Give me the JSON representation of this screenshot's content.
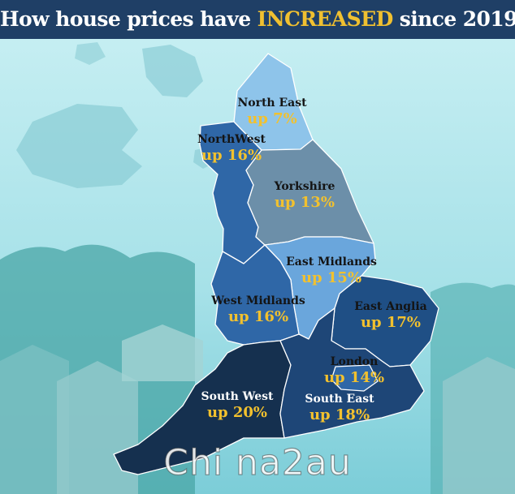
{
  "title": {
    "part1": "How house prices have ",
    "highlight": "INCREASED",
    "part2": " since 2019"
  },
  "colors": {
    "header_bg": "#1f3f66",
    "highlight": "#f0c030",
    "value_text": "#f2c12e",
    "background_sky": "#a9e4ea"
  },
  "regions": [
    {
      "id": "north-east",
      "name": "North East",
      "change": "up 7%",
      "fill": "#8ec4ea"
    },
    {
      "id": "north-west",
      "name": "NorthWest",
      "change": "up 16%",
      "fill": "#2f67a7"
    },
    {
      "id": "yorkshire",
      "name": "Yorkshire",
      "change": "up 13%",
      "fill": "#6c8fa9"
    },
    {
      "id": "east-midlands",
      "name": "East Midlands",
      "change": "up 15%",
      "fill": "#6aa6dc"
    },
    {
      "id": "west-midlands",
      "name": "West Midlands",
      "change": "up 16%",
      "fill": "#2f67a7"
    },
    {
      "id": "east-anglia",
      "name": "East Anglia",
      "change": "up 17%",
      "fill": "#1f4f85"
    },
    {
      "id": "london",
      "name": "London",
      "change": "up 14%",
      "fill": "#2f67a7"
    },
    {
      "id": "south-west",
      "name": "South West",
      "change": "up 20%",
      "fill": "#15304f"
    },
    {
      "id": "south-east",
      "name": "South East",
      "change": "up 18%",
      "fill": "#1e4677"
    }
  ],
  "watermark": "Chi na2au"
}
